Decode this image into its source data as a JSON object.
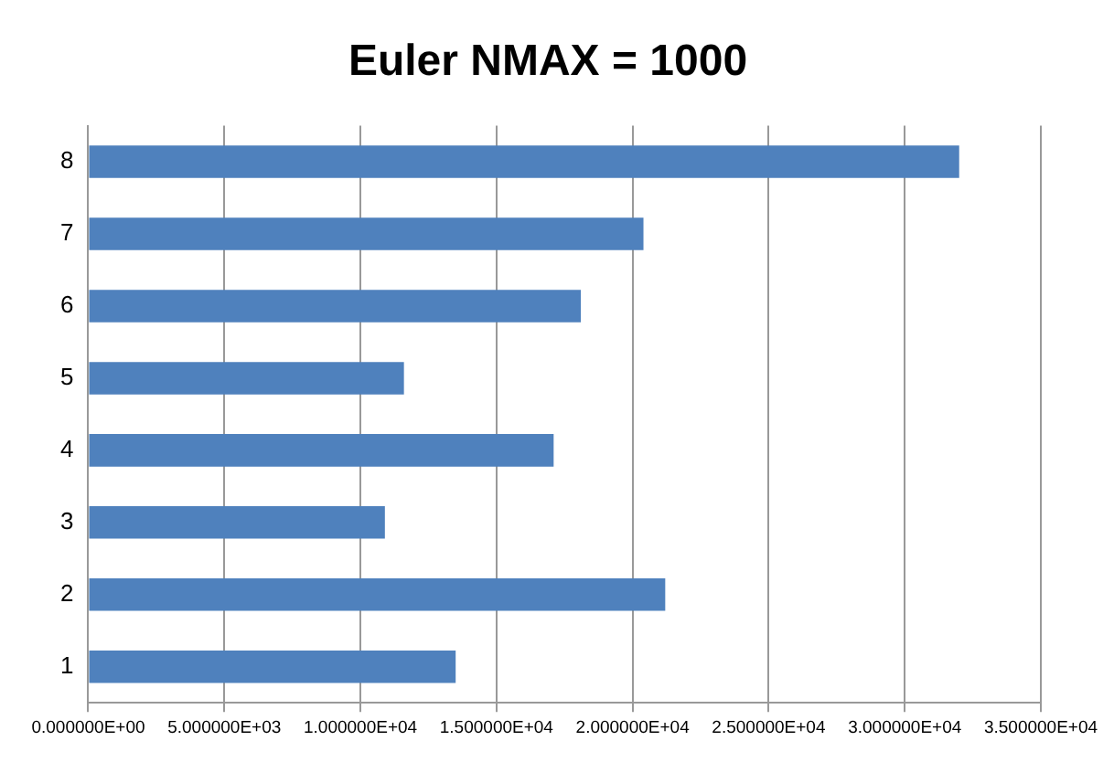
{
  "chart_data": {
    "type": "bar",
    "orientation": "horizontal",
    "title": "Euler NMAX = 1000",
    "categories": [
      "8",
      "7",
      "6",
      "5",
      "4",
      "3",
      "2",
      "1"
    ],
    "values": [
      32000,
      20400,
      18100,
      11600,
      17100,
      10900,
      21200,
      13500
    ],
    "color": "#4f81bd",
    "xlim": [
      0,
      35000
    ],
    "xticks": [
      {
        "value": 0,
        "label": "0.000000E+00"
      },
      {
        "value": 5000,
        "label": "5.000000E+03"
      },
      {
        "value": 10000,
        "label": "1.000000E+04"
      },
      {
        "value": 15000,
        "label": "1.500000E+04"
      },
      {
        "value": 20000,
        "label": "2.000000E+04"
      },
      {
        "value": 25000,
        "label": "2.500000E+04"
      },
      {
        "value": 30000,
        "label": "3.000000E+04"
      },
      {
        "value": 35000,
        "label": "3.500000E+04"
      }
    ],
    "grid": "x",
    "legend": false
  }
}
